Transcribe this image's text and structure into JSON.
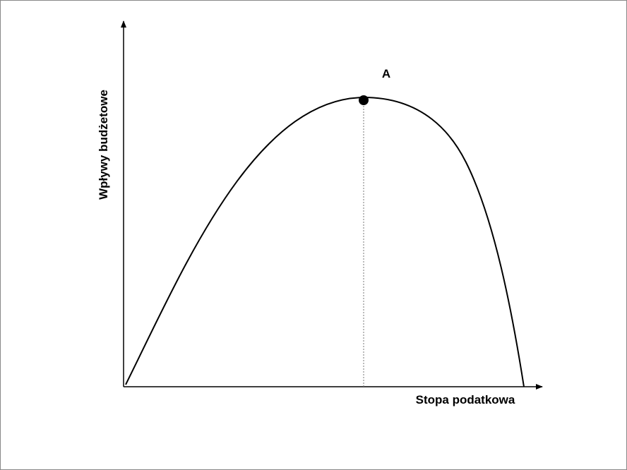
{
  "diagram": {
    "y_axis_label": "Wpływy budżetowe",
    "x_axis_label": "Stopa podatkowa",
    "point_label": "A"
  }
}
